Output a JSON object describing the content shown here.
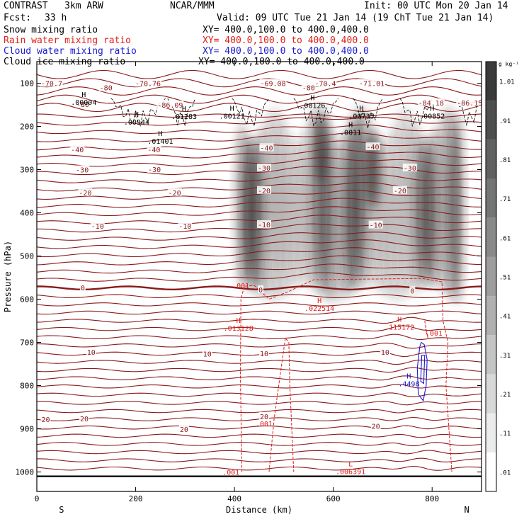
{
  "header": {
    "title_left": "CONTRAST   3km ARW",
    "org": "NCAR/MMM",
    "init": "Init: 00 UTC Mon 20 Jan 14",
    "fcst_label": "Fcst:",
    "fcst_value": "33 h",
    "valid": "Valid: 09 UTC Tue 21 Jan 14 (19 ChT Tue 21 Jan 14)"
  },
  "fields": [
    {
      "name": "Snow mixing ratio",
      "xy": "XY= 400.0,100.0 to 400.0,400.0",
      "color": "#000000"
    },
    {
      "name": "Rain water mixing ratio",
      "xy": "XY= 400.0,100.0 to 400.0,400.0",
      "color": "#e0201c"
    },
    {
      "name": "Cloud water mixing ratio",
      "xy": "XY= 400.0,100.0 to 400.0,400.0",
      "color": "#1a1ad0"
    },
    {
      "name": "Cloud ice mixing ratio",
      "xy": "XY= 400.0,100.0 to 400.0,400.0",
      "color": "#000000"
    }
  ],
  "chart_data": {
    "type": "heatmap",
    "title": "CONTRAST   3km ARW",
    "xlabel": "Distance (km)",
    "ylabel": "Pressure (hPa)",
    "xlim": [
      0,
      900
    ],
    "ylim": [
      1045,
      50
    ],
    "x_ticks": [
      0,
      200,
      400,
      600,
      800
    ],
    "y_ticks": [
      100,
      200,
      300,
      400,
      500,
      600,
      700,
      800,
      900,
      1000
    ],
    "x_end_labels": {
      "left": "S",
      "right": "N"
    },
    "colorbar": {
      "unit": "g kg⁻¹",
      "ticks": [
        ".01",
        ".11",
        ".21",
        ".31",
        ".41",
        ".51",
        ".61",
        ".71",
        ".81",
        ".91",
        "1.01"
      ],
      "colormap": "white-to-black"
    },
    "temperature_contours_color": "#8b1a1a",
    "temperature_labels": [
      {
        "text": "-70.7",
        "x": 30,
        "p": 100
      },
      {
        "text": "-70.76",
        "x": 225,
        "p": 100
      },
      {
        "text": "-80",
        "x": 140,
        "p": 110
      },
      {
        "text": "-69.08",
        "x": 478,
        "p": 100
      },
      {
        "text": "-70.4",
        "x": 584,
        "p": 100
      },
      {
        "text": "-71.01",
        "x": 678,
        "p": 100
      },
      {
        "text": "-80",
        "x": 550,
        "p": 110
      },
      {
        "text": "-86.09",
        "x": 270,
        "p": 150
      },
      {
        "text": "-80",
        "x": 93,
        "p": 148
      },
      {
        "text": "-84.18",
        "x": 798,
        "p": 145
      },
      {
        "text": "-86.15",
        "x": 876,
        "p": 145
      },
      {
        "text": "-40",
        "x": 82,
        "p": 253
      },
      {
        "text": "-40",
        "x": 237,
        "p": 253
      },
      {
        "text": "-40",
        "x": 465,
        "p": 249
      },
      {
        "text": "-40",
        "x": 680,
        "p": 247
      },
      {
        "text": "-30",
        "x": 92,
        "p": 300
      },
      {
        "text": "-30",
        "x": 238,
        "p": 299
      },
      {
        "text": "-30",
        "x": 460,
        "p": 296
      },
      {
        "text": "-30",
        "x": 755,
        "p": 296
      },
      {
        "text": "-20",
        "x": 98,
        "p": 353
      },
      {
        "text": "-20",
        "x": 279,
        "p": 353
      },
      {
        "text": "-20",
        "x": 460,
        "p": 348
      },
      {
        "text": "-20",
        "x": 735,
        "p": 348
      },
      {
        "text": "-10",
        "x": 123,
        "p": 430
      },
      {
        "text": "-10",
        "x": 300,
        "p": 430
      },
      {
        "text": "-10",
        "x": 460,
        "p": 427
      },
      {
        "text": "-10",
        "x": 686,
        "p": 428
      },
      {
        "text": "0",
        "x": 93,
        "p": 573
      },
      {
        "text": "0",
        "x": 453,
        "p": 578
      },
      {
        "text": "0",
        "x": 760,
        "p": 580
      },
      {
        "text": "10",
        "x": 110,
        "p": 722
      },
      {
        "text": "10",
        "x": 345,
        "p": 726
      },
      {
        "text": "10",
        "x": 460,
        "p": 725
      },
      {
        "text": "10",
        "x": 705,
        "p": 722
      },
      {
        "text": "20",
        "x": 18,
        "p": 878
      },
      {
        "text": "20",
        "x": 96,
        "p": 876
      },
      {
        "text": "20",
        "x": 298,
        "p": 901
      },
      {
        "text": "20",
        "x": 460,
        "p": 871
      },
      {
        "text": "20",
        "x": 686,
        "p": 893
      }
    ],
    "extrema": [
      {
        "mark": "H",
        "value": ".00004",
        "x": 95,
        "p": 135,
        "color": "#000000"
      },
      {
        "mark": "H",
        "value": ".00944",
        "x": 202,
        "p": 181,
        "color": "#000000"
      },
      {
        "mark": "H",
        "value": ".01283",
        "x": 298,
        "p": 168,
        "color": "#000000"
      },
      {
        "mark": "H",
        "value": ".00121",
        "x": 395,
        "p": 167,
        "color": "#000000"
      },
      {
        "mark": "H",
        "value": ".00126",
        "x": 558,
        "p": 143,
        "color": "#000000"
      },
      {
        "mark": "H",
        "value": ".00735",
        "x": 657,
        "p": 167,
        "color": "#000000"
      },
      {
        "mark": "H",
        "value": ".0011",
        "x": 635,
        "p": 205,
        "color": "#000000"
      },
      {
        "mark": "H",
        "value": ".00852",
        "x": 800,
        "p": 167,
        "color": "#000000"
      },
      {
        "mark": "H",
        "value": ".01401",
        "x": 250,
        "p": 225,
        "color": "#000000"
      },
      {
        "mark": "H",
        "value": ".022514",
        "x": 572,
        "p": 612,
        "color": "#e0201c"
      },
      {
        "mark": "H",
        "value": ".013128",
        "x": 408,
        "p": 658,
        "color": "#e0201c"
      },
      {
        "mark": "H",
        "value": ".115172",
        "x": 734,
        "p": 656,
        "color": "#e0201c"
      },
      {
        "mark": "H",
        "value": ".4498",
        "x": 753,
        "p": 787,
        "color": "#1a1ad0"
      },
      {
        "mark": "L",
        "value": ".006391",
        "x": 635,
        "p": 990,
        "color": "#e0201c"
      }
    ],
    "rain_contour_labels": [
      {
        "text": ".001",
        "x": 413,
        "p": 568
      },
      {
        "text": ".001",
        "x": 804,
        "p": 678
      },
      {
        "text": ".001",
        "x": 460,
        "p": 888
      },
      {
        "text": ".001",
        "x": 393,
        "p": 1000
      }
    ],
    "column_extent_km": [
      415,
      860
    ],
    "column_top_hPa": 190,
    "column_base_hPa": 590
  }
}
